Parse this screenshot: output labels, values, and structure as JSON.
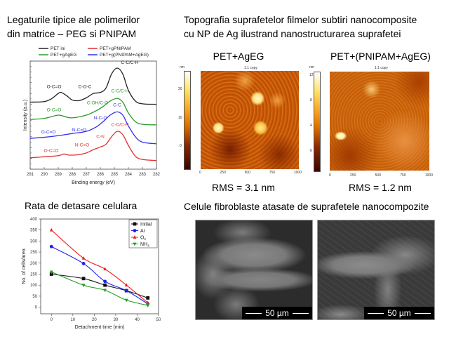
{
  "titles": {
    "xps_line1": "Legaturile tipice ale polimerilor",
    "xps_line2": "din matrice – PEG si PNIPAM",
    "afm_line1": "Topografia suprafetelor filmelor subtiri nanocomposite",
    "afm_line2": "cu NP de Ag ilustrand nanostructurarea suprafetei",
    "detach": "Rata de detasare celulara",
    "sem": "Celule fibroblaste atasate de suprafetele nanocompozite"
  },
  "afm": [
    {
      "label": "PET+AgEG",
      "rms": "RMS = 3.1 nm",
      "img_title": "1.1 copy",
      "unit": "nm",
      "cbar_ticks": [
        "20",
        "10",
        "0"
      ],
      "axis_ticks": [
        "0",
        "250",
        "500",
        "750",
        "1000"
      ]
    },
    {
      "label": "PET+(PNIPAM+AgEG)",
      "rms": "RMS = 1.2 nm",
      "img_title": "1.1 copy",
      "unit": "nm",
      "cbar_ticks": [
        "12",
        "8",
        "4",
        "0"
      ],
      "axis_ticks": [
        "0",
        "250",
        "500",
        "750",
        "1000"
      ]
    }
  ],
  "sem": [
    {
      "scale_label": "50 µm"
    },
    {
      "scale_label": "50 µm"
    }
  ],
  "chart_data": [
    {
      "type": "line",
      "title": "",
      "xlabel": "Binding energy (eV)",
      "ylabel": "Intensity (a.u.)",
      "xlim": [
        291,
        282
      ],
      "ylim": [
        0,
        10
      ],
      "x_ticks": [
        291,
        290,
        289,
        288,
        287,
        286,
        285,
        284,
        283,
        282
      ],
      "legend": "top",
      "series": [
        {
          "name": "PET ini",
          "color": "#222222",
          "points": [
            [
              291,
              6.2
            ],
            [
              290,
              6.25
            ],
            [
              289.5,
              6.5
            ],
            [
              289,
              7.0
            ],
            [
              288.8,
              7.1
            ],
            [
              288.4,
              6.8
            ],
            [
              288,
              6.4
            ],
            [
              287.5,
              6.35
            ],
            [
              287,
              6.6
            ],
            [
              286.5,
              7.0
            ],
            [
              286,
              7.1
            ],
            [
              285.6,
              7.5
            ],
            [
              285.2,
              8.8
            ],
            [
              284.8,
              9.35
            ],
            [
              284.4,
              8.8
            ],
            [
              284,
              7.3
            ],
            [
              283.5,
              6.3
            ],
            [
              283,
              6.05
            ],
            [
              282,
              6.0
            ]
          ],
          "annotations": [
            {
              "text": "O-C=O",
              "x": 289.3,
              "y": 7.5
            },
            {
              "text": "C-O-C",
              "x": 287.1,
              "y": 7.5
            },
            {
              "text": "C-C/C-H",
              "x": 283.9,
              "y": 9.75
            }
          ]
        },
        {
          "name": "PET+gPNIPAM",
          "color": "#e03030",
          "points": [
            [
              291,
              1.05
            ],
            [
              290,
              1.15
            ],
            [
              289,
              1.25
            ],
            [
              288.6,
              1.4
            ],
            [
              288.2,
              1.3
            ],
            [
              287.5,
              1.35
            ],
            [
              287,
              1.5
            ],
            [
              286.5,
              1.8
            ],
            [
              286,
              2.05
            ],
            [
              285.6,
              2.3
            ],
            [
              285.2,
              3.0
            ],
            [
              284.8,
              3.5
            ],
            [
              284.4,
              3.2
            ],
            [
              284,
              2.2
            ],
            [
              283.5,
              1.2
            ],
            [
              283,
              0.9
            ],
            [
              282,
              0.8
            ]
          ],
          "annotations": [
            {
              "text": "O-C=O",
              "x": 289.5,
              "y": 1.6
            },
            {
              "text": "N-C=O",
              "x": 287.3,
              "y": 2.1
            },
            {
              "text": "C-N",
              "x": 286,
              "y": 2.9
            },
            {
              "text": "C-C/C-H",
              "x": 284.6,
              "y": 4.0
            }
          ]
        },
        {
          "name": "PET+gAgEG",
          "color": "#2a9a2a",
          "points": [
            [
              291,
              4.6
            ],
            [
              290,
              4.7
            ],
            [
              289,
              5.0
            ],
            [
              288.5,
              4.85
            ],
            [
              288,
              4.75
            ],
            [
              287,
              5.0
            ],
            [
              286.3,
              5.4
            ],
            [
              285.8,
              5.8
            ],
            [
              285.3,
              6.3
            ],
            [
              284.8,
              6.55
            ],
            [
              284.4,
              6.2
            ],
            [
              284,
              5.2
            ],
            [
              283.5,
              4.4
            ],
            [
              283,
              4.15
            ],
            [
              282,
              4.1
            ]
          ],
          "annotations": [
            {
              "text": "O-C=O",
              "x": 289.3,
              "y": 5.35
            },
            {
              "text": "C-OH/C-O",
              "x": 286.2,
              "y": 6.0
            },
            {
              "text": "C-C/C-H",
              "x": 284.6,
              "y": 7.1
            }
          ]
        },
        {
          "name": "PET+g(PNIPAM+AgEG)",
          "color": "#3030f0",
          "points": [
            [
              291,
              2.85
            ],
            [
              290,
              2.95
            ],
            [
              289,
              3.1
            ],
            [
              288,
              3.3
            ],
            [
              287,
              3.5
            ],
            [
              286.3,
              3.9
            ],
            [
              285.8,
              4.4
            ],
            [
              285.3,
              5.0
            ],
            [
              284.8,
              5.3
            ],
            [
              284.4,
              5.0
            ],
            [
              284,
              4.0
            ],
            [
              283.5,
              3.0
            ],
            [
              283,
              2.5
            ],
            [
              282,
              2.35
            ]
          ],
          "annotations": [
            {
              "text": "O-C=O",
              "x": 289.7,
              "y": 3.3
            },
            {
              "text": "N-C=O",
              "x": 287.5,
              "y": 3.5
            },
            {
              "text": "N-C-O",
              "x": 286,
              "y": 4.6
            },
            {
              "text": "C-C",
              "x": 284.8,
              "y": 5.8
            }
          ]
        }
      ]
    },
    {
      "type": "line",
      "title": "",
      "xlabel": "Detachment time (min)",
      "ylabel": "No. of cells/area",
      "xlim": [
        -5,
        50
      ],
      "ylim": [
        -30,
        400
      ],
      "x_ticks": [
        0,
        10,
        20,
        30,
        40,
        50
      ],
      "y_ticks": [
        0,
        50,
        100,
        150,
        200,
        250,
        300,
        350,
        400
      ],
      "legend": "top-right",
      "x": [
        0,
        15,
        25,
        35,
        45
      ],
      "series": [
        {
          "name": "Initial",
          "color": "#111111",
          "marker": "square",
          "values": [
            150,
            130,
            100,
            75,
            42
          ]
        },
        {
          "name": "Ar",
          "color": "#2020ee",
          "marker": "circle",
          "values": [
            275,
            198,
            117,
            75,
            15
          ]
        },
        {
          "name": "O2",
          "legend_main": "O",
          "legend_sub": "2",
          "color": "#ee2020",
          "marker": "triangle-up",
          "values": [
            350,
            222,
            173,
            100,
            20
          ]
        },
        {
          "name": "NH3",
          "legend_main": "NH",
          "legend_sub": "3",
          "color": "#20a020",
          "marker": "triangle-down",
          "values": [
            160,
            100,
            77,
            32,
            8
          ]
        }
      ]
    }
  ]
}
